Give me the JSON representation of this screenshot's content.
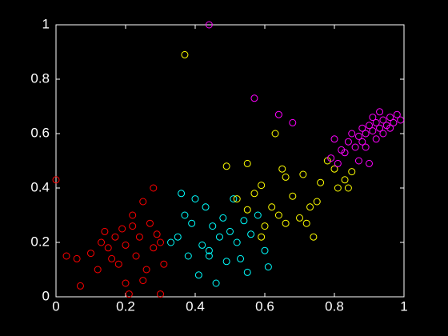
{
  "chart_data": {
    "type": "scatter",
    "xlim": [
      0,
      1
    ],
    "ylim": [
      0,
      1
    ],
    "xticks": [
      0,
      0.2,
      0.4,
      0.6,
      0.8,
      1
    ],
    "yticks": [
      0,
      0.2,
      0.4,
      0.6,
      0.8,
      1
    ],
    "background": "#000000",
    "axis_color": "#ffffff",
    "series": [
      {
        "color": "#ff0000",
        "x": [
          0.0,
          0.03,
          0.06,
          0.07,
          0.1,
          0.12,
          0.13,
          0.15,
          0.17,
          0.18,
          0.19,
          0.2,
          0.2,
          0.21,
          0.22,
          0.23,
          0.24,
          0.25,
          0.26,
          0.27,
          0.28,
          0.28,
          0.29,
          0.3,
          0.31,
          0.3,
          0.16,
          0.25,
          0.22,
          0.14
        ],
        "values": [
          0.43,
          0.15,
          0.14,
          0.04,
          0.16,
          0.1,
          0.2,
          0.18,
          0.22,
          0.12,
          0.25,
          0.05,
          0.19,
          0.01,
          0.3,
          0.15,
          0.22,
          0.35,
          0.1,
          0.27,
          0.18,
          0.4,
          0.23,
          0.2,
          0.12,
          0.01,
          0.14,
          0.06,
          0.26,
          0.24
        ]
      },
      {
        "color": "#00ffff",
        "x": [
          0.33,
          0.35,
          0.36,
          0.37,
          0.38,
          0.39,
          0.4,
          0.41,
          0.42,
          0.43,
          0.44,
          0.45,
          0.46,
          0.47,
          0.48,
          0.49,
          0.5,
          0.51,
          0.52,
          0.53,
          0.54,
          0.55,
          0.56,
          0.58,
          0.6,
          0.61,
          0.44
        ],
        "values": [
          0.2,
          0.22,
          0.38,
          0.3,
          0.15,
          0.27,
          0.36,
          0.08,
          0.19,
          0.33,
          0.17,
          0.26,
          0.05,
          0.22,
          0.29,
          0.13,
          0.24,
          0.36,
          0.2,
          0.14,
          0.28,
          0.09,
          0.23,
          0.3,
          0.17,
          0.11,
          0.15
        ]
      },
      {
        "color": "#ffff00",
        "x": [
          0.37,
          0.49,
          0.52,
          0.55,
          0.57,
          0.59,
          0.6,
          0.62,
          0.63,
          0.64,
          0.65,
          0.66,
          0.68,
          0.7,
          0.71,
          0.72,
          0.73,
          0.74,
          0.75,
          0.76,
          0.78,
          0.8,
          0.81,
          0.83,
          0.84,
          0.85,
          0.55,
          0.66,
          0.59
        ],
        "values": [
          0.89,
          0.48,
          0.36,
          0.32,
          0.38,
          0.41,
          0.26,
          0.33,
          0.6,
          0.3,
          0.47,
          0.44,
          0.37,
          0.29,
          0.45,
          0.27,
          0.33,
          0.22,
          0.35,
          0.42,
          0.5,
          0.47,
          0.4,
          0.43,
          0.4,
          0.46,
          0.49,
          0.27,
          0.22
        ]
      },
      {
        "color": "#ff00ff",
        "x": [
          0.44,
          0.57,
          0.64,
          0.68,
          0.8,
          0.79,
          0.81,
          0.82,
          0.83,
          0.84,
          0.85,
          0.86,
          0.87,
          0.88,
          0.88,
          0.89,
          0.9,
          0.9,
          0.91,
          0.92,
          0.92,
          0.93,
          0.94,
          0.94,
          0.95,
          0.96,
          0.96,
          0.97,
          0.98,
          0.99,
          0.87,
          0.91,
          0.93,
          0.89
        ],
        "values": [
          1.0,
          0.73,
          0.67,
          0.64,
          0.58,
          0.51,
          0.49,
          0.54,
          0.53,
          0.57,
          0.6,
          0.55,
          0.59,
          0.62,
          0.57,
          0.6,
          0.63,
          0.49,
          0.61,
          0.64,
          0.58,
          0.62,
          0.65,
          0.6,
          0.63,
          0.66,
          0.62,
          0.64,
          0.67,
          0.65,
          0.5,
          0.66,
          0.68,
          0.55
        ]
      }
    ]
  }
}
